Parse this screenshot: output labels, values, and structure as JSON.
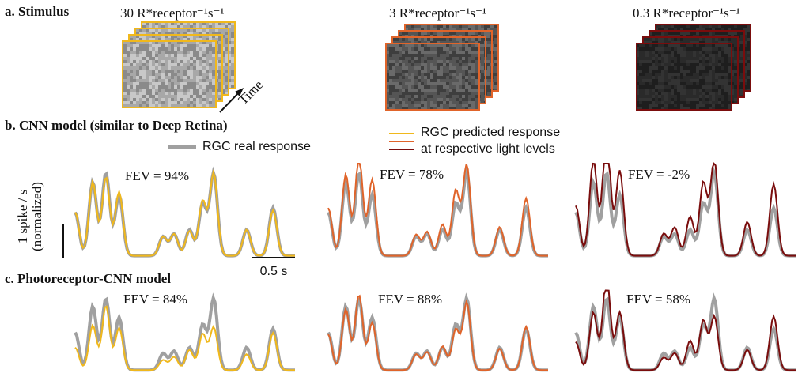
{
  "panel_a": {
    "label": "a. Stimulus",
    "levels": [
      "30 R*receptor⁻¹s⁻¹",
      "3 R*receptor⁻¹s⁻¹",
      "0.3 R*receptor⁻¹s⁻¹"
    ],
    "time": "Time"
  },
  "panel_b": {
    "label": "b. CNN model (similar to Deep Retina)",
    "legend_real": "RGC real response",
    "legend_pred": [
      "RGC predicted response",
      "at respective light levels"
    ],
    "fev": [
      "FEV = 94%",
      "FEV = 78%",
      "FEV = -2%"
    ]
  },
  "panel_c": {
    "label": "c. Photoreceptor-CNN model",
    "fev": [
      "FEV = 84%",
      "FEV = 88%",
      "FEV = 58%"
    ]
  },
  "scale": {
    "y_label": [
      "1 spike / s",
      "(normalized)"
    ],
    "x_label": "0.5 s"
  }
}
